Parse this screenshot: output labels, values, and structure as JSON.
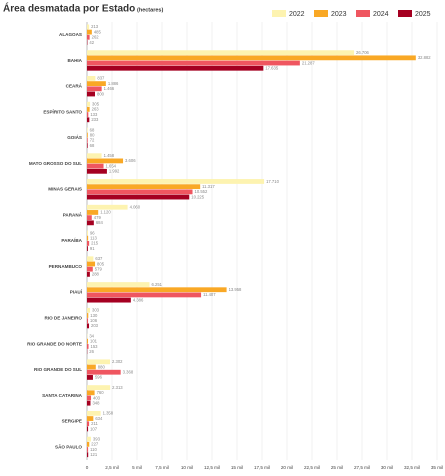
{
  "chart_data": {
    "type": "hbar",
    "title": "Área desmatada por Estado",
    "subtitle": "(hectares)",
    "categories": [
      "ALAGOAS",
      "BAHIA",
      "CEARÁ",
      "ESPÍRITO SANTO",
      "GOIÁS",
      "MATO GROSSO DO SUL",
      "MINAS GERAIS",
      "PARANÁ",
      "PARAÍBA",
      "PERNAMBUCO",
      "PIAUÍ",
      "RIO DE JANEIRO",
      "RIO GRANDE DO NORTE",
      "RIO GRANDE DO SUL",
      "SANTA CATARINA",
      "SERGIPE",
      "SÃO PAULO"
    ],
    "series": [
      {
        "name": "2022",
        "color": "#fdf3b0",
        "values": [
          213,
          26706,
          837,
          305,
          68,
          1458,
          17710,
          4060,
          96,
          637,
          6251,
          303,
          34,
          2302,
          2313,
          1358,
          393
        ],
        "value_labels": [
          "213",
          "26.706",
          "837",
          "305",
          "68",
          "1.458",
          "17.710",
          "4.060",
          "96",
          "637",
          "6.251",
          "303",
          "34",
          "2.302",
          "2.313",
          "1.358",
          "393"
        ]
      },
      {
        "name": "2023",
        "color": "#f9a825",
        "values": [
          485,
          32882,
          1886,
          263,
          80,
          3606,
          11317,
          1120,
          113,
          805,
          13958,
          130,
          101,
          880,
          760,
          634,
          227
        ],
        "value_labels": [
          "485",
          "32.882",
          "1.886",
          "263",
          "80",
          "3.606",
          "11.317",
          "1.120",
          "113",
          "805",
          "13.958",
          "130",
          "101",
          "880",
          "760",
          "634",
          "227"
        ]
      },
      {
        "name": "2024",
        "color": "#ef5660",
        "values": [
          262,
          21287,
          1466,
          133,
          72,
          1654,
          10552,
          479,
          215,
          579,
          11407,
          106,
          153,
          3368,
          403,
          211,
          110
        ],
        "value_labels": [
          "262",
          "21.287",
          "1.466",
          "133",
          "72",
          "1.654",
          "10.552",
          "479",
          "215",
          "579",
          "11.407",
          "106",
          "153",
          "3.368",
          "403",
          "211",
          "110"
        ]
      },
      {
        "name": "2025",
        "color": "#a50021",
        "values": [
          42,
          17635,
          800,
          233,
          68,
          1992,
          10225,
          684,
          91,
          288,
          4386,
          203,
          26,
          596,
          348,
          107,
          121
        ],
        "value_labels": [
          "42",
          "17.635",
          "800",
          "233",
          "68",
          "1.992",
          "10.225",
          "684",
          "91",
          "288",
          "4.386",
          "203",
          "26",
          "596",
          "348",
          "107",
          "121"
        ]
      }
    ],
    "xlim": [
      0,
      35000
    ],
    "xticks": [
      0,
      {
        "value": 2500,
        "label": "2,5 mil"
      },
      {
        "value": 5000,
        "label": "5 mil"
      },
      {
        "value": 7500,
        "label": "7,5 mil"
      },
      {
        "value": 10000,
        "label": "10 mil"
      },
      {
        "value": 12500,
        "label": "12,5 mil"
      },
      {
        "value": 15000,
        "label": "15 mil"
      },
      {
        "value": 17500,
        "label": "17,5 mil"
      },
      {
        "value": 20000,
        "label": "20 mil"
      },
      {
        "value": 22500,
        "label": "22,5 mil"
      },
      {
        "value": 25000,
        "label": "25 mil"
      },
      {
        "value": 27500,
        "label": "27,5 mil"
      },
      {
        "value": 30000,
        "label": "30 mil"
      },
      {
        "value": 32500,
        "label": "32,5 mil"
      },
      {
        "value": 35000,
        "label": "35 mil"
      }
    ],
    "grid": true
  }
}
